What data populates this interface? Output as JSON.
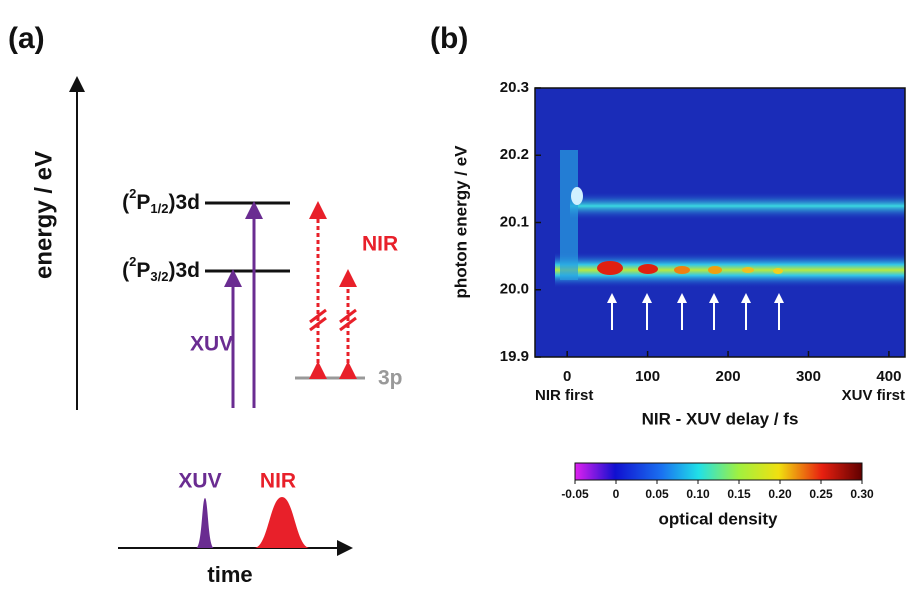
{
  "panel_a": {
    "label": "(a)",
    "y_axis_label": "energy / eV",
    "levels": [
      {
        "prefix": "(",
        "superscript": "2",
        "element": "P",
        "subscript": "1/2",
        "suffix": ")3d"
      },
      {
        "prefix": "(",
        "superscript": "2",
        "element": "P",
        "subscript": "3/2",
        "suffix": ")3d"
      }
    ],
    "lower_level": "3p",
    "xuv_label": "XUV",
    "nir_label": "NIR",
    "pulse_labels": [
      "XUV",
      "NIR"
    ],
    "time_axis_label": "time"
  },
  "chart_data": {
    "type": "heatmap",
    "label": "(b)",
    "x_axis_label": "NIR - XUV delay / fs",
    "y_axis_label": "photon energy / eV",
    "x_annotations": [
      "NIR first",
      "XUV first"
    ],
    "xlim": [
      -40,
      420
    ],
    "xticks": [
      0,
      100,
      200,
      300,
      400
    ],
    "ylim": [
      19.9,
      20.3
    ],
    "yticks": [
      {
        "value": 19.9,
        "label": "19.9"
      },
      {
        "value": 20,
        "label": "20.0"
      },
      20.1,
      20.2,
      20.3
    ],
    "colorbar": {
      "label": "optical density",
      "clim": [
        -0.05,
        0.3
      ],
      "ticks": [
        -0.05,
        0,
        0.05,
        {
          "value": 0.1,
          "label": "0.10"
        },
        0.15,
        {
          "value": 0.2,
          "label": "0.20"
        },
        0.25,
        {
          "value": 0.3,
          "label": "0.30"
        }
      ]
    }
  }
}
